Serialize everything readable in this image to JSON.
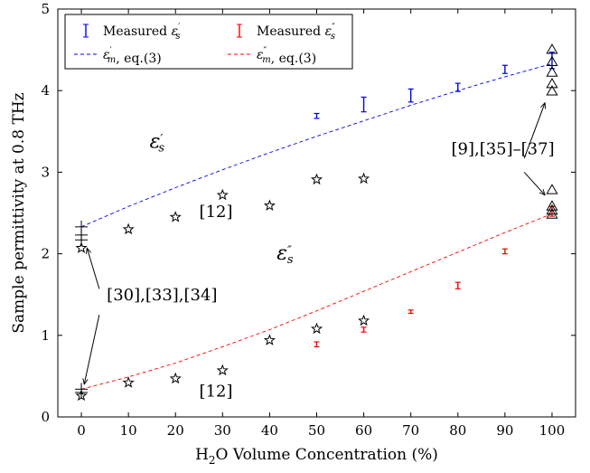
{
  "chart_data": {
    "type": "scatter",
    "xlabel": {
      "pre": "H",
      "sub": "2",
      "post": "O Volume Concentration (%)"
    },
    "ylabel": "Sample permittivity at 0.8 THz",
    "xlim": [
      -5,
      105
    ],
    "ylim": [
      0,
      5
    ],
    "xticks": [
      0,
      10,
      20,
      30,
      40,
      50,
      60,
      70,
      80,
      90,
      100
    ],
    "yticks": [
      0,
      1,
      2,
      3,
      4,
      5
    ],
    "grid": false,
    "legend_position": "top-left",
    "legend": [
      {
        "key": "meas_s",
        "label": "Measured ",
        "sym": "ε",
        "sub": "s",
        "prime": "′",
        "color": "#0000ff",
        "marker": "errorbar"
      },
      {
        "key": "meas_ss",
        "label": "Measured ",
        "sym": "ε",
        "sub": "s",
        "prime": "″",
        "color": "#ff0000",
        "marker": "errorbar"
      },
      {
        "key": "model_s",
        "label": ", eq.(3)",
        "sym": "ε",
        "sub": "m",
        "prime": "′",
        "color": "#0000ff",
        "marker": "dashed"
      },
      {
        "key": "model_ss",
        "label": ", eq.(3)",
        "sym": "ε",
        "sub": "m",
        "prime": "″",
        "color": "#ff0000",
        "marker": "dashed"
      }
    ],
    "series": [
      {
        "name": "Measured ε′s",
        "kind": "errorbar",
        "color": "#0000ff",
        "x": [
          50,
          60,
          70,
          80,
          90,
          100
        ],
        "y": [
          3.69,
          3.83,
          3.94,
          4.04,
          4.26,
          4.37
        ],
        "err": [
          0.03,
          0.09,
          0.08,
          0.05,
          0.05,
          0.1
        ]
      },
      {
        "name": "Measured ε″s",
        "kind": "errorbar",
        "color": "#ff0000",
        "x": [
          50,
          60,
          70,
          80,
          90,
          100
        ],
        "y": [
          0.89,
          1.07,
          1.29,
          1.61,
          2.03,
          2.52
        ],
        "err": [
          0.03,
          0.03,
          0.02,
          0.04,
          0.03,
          0.06
        ]
      },
      {
        "name": "ε′m, eq.(3)",
        "kind": "dashed",
        "color": "#0000ff",
        "x": [
          0,
          10,
          20,
          30,
          40,
          50,
          60,
          70,
          80,
          90,
          100
        ],
        "y": [
          2.33,
          2.58,
          2.81,
          3.03,
          3.24,
          3.44,
          3.63,
          3.82,
          4.0,
          4.17,
          4.33
        ]
      },
      {
        "name": "ε″m, eq.(3)",
        "kind": "dashed",
        "color": "#ff0000",
        "x": [
          0,
          10,
          20,
          30,
          40,
          50,
          60,
          70,
          80,
          90,
          100
        ],
        "y": [
          0.34,
          0.49,
          0.66,
          0.86,
          1.07,
          1.3,
          1.54,
          1.78,
          2.02,
          2.26,
          2.49
        ]
      },
      {
        "name": "[12] ε′",
        "kind": "star",
        "color": "#000000",
        "x": [
          10,
          20,
          30,
          40,
          50,
          60
        ],
        "y": [
          2.3,
          2.45,
          2.72,
          2.59,
          2.91,
          2.92
        ]
      },
      {
        "name": "[12] ε″",
        "kind": "star",
        "color": "#000000",
        "x": [
          10,
          20,
          30,
          40,
          50,
          60
        ],
        "y": [
          0.42,
          0.47,
          0.57,
          0.94,
          1.08,
          1.18
        ]
      },
      {
        "name": "[30],[33],[34] stars",
        "kind": "star",
        "color": "#000000",
        "x": [
          0,
          0
        ],
        "y": [
          2.07,
          0.26
        ]
      },
      {
        "name": "[30],[33],[34] plus",
        "kind": "plus",
        "color": "#000000",
        "x": [
          0,
          0,
          0,
          0,
          0
        ],
        "y": [
          2.33,
          2.23,
          2.17,
          0.34,
          0.3
        ]
      },
      {
        "name": "[9],[35]-[37] triangles",
        "kind": "triangle",
        "color": "#000000",
        "x": [
          100,
          100,
          100,
          100,
          100,
          100,
          100,
          100,
          100
        ],
        "y": [
          4.5,
          4.35,
          4.22,
          4.08,
          3.99,
          2.78,
          2.58,
          2.53,
          2.48
        ]
      }
    ],
    "annotations": {
      "eps_s": {
        "sym": "ε",
        "prime": "′",
        "sub": "s"
      },
      "eps_ss": {
        "sym": "ε",
        "prime": "″",
        "sub": "s"
      },
      "ref_12_top": "[12]",
      "ref_12_bottom": "[12]",
      "ref_30": "[30],[33],[34]",
      "ref_9": "[9],[35]–[37]"
    }
  }
}
